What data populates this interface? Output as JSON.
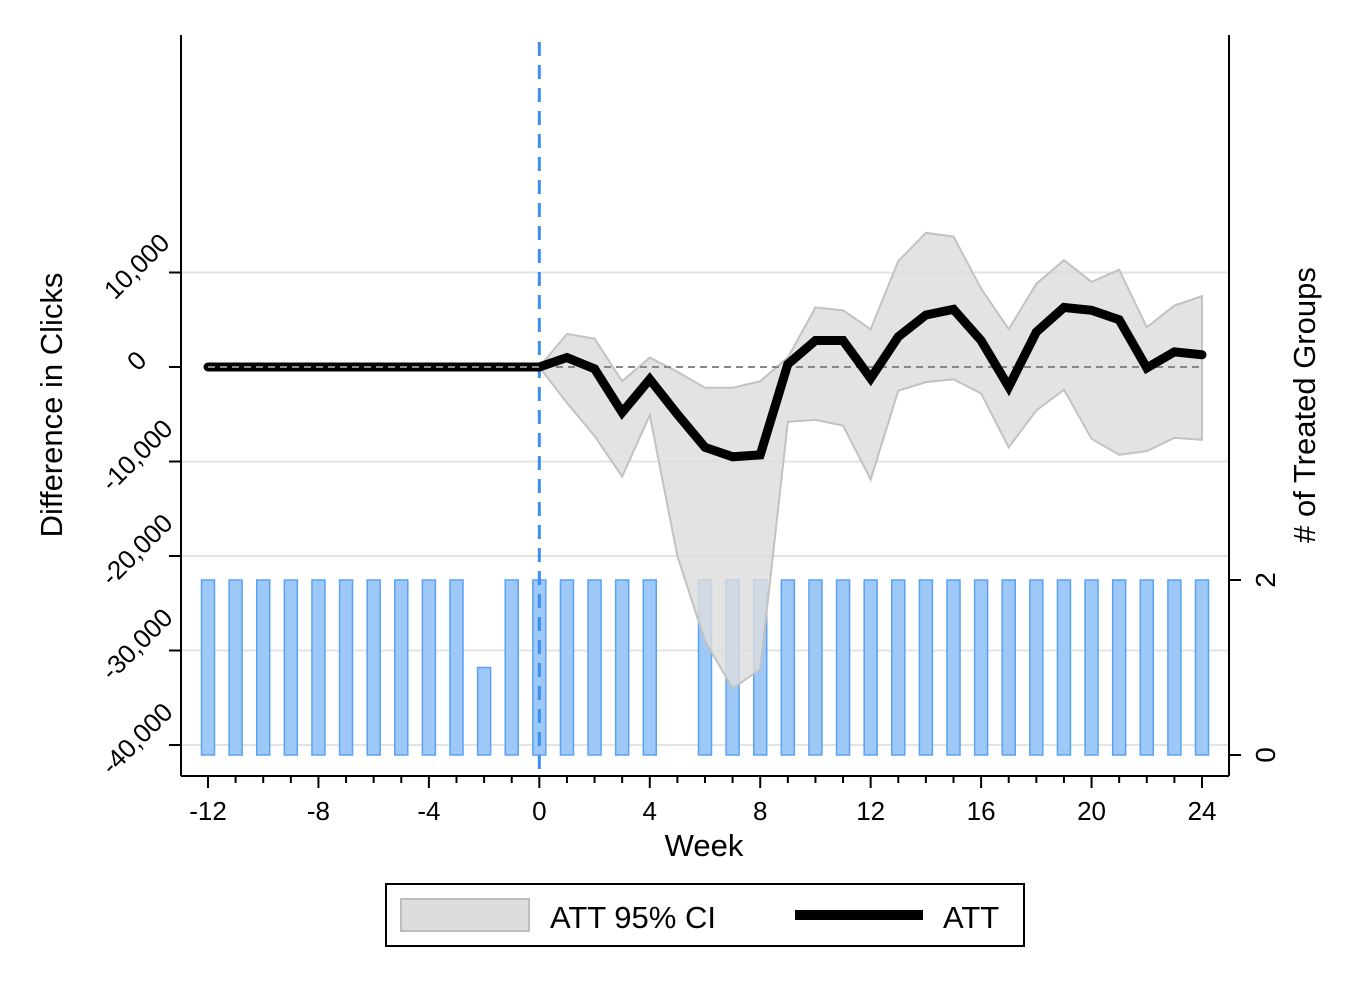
{
  "chart_data": {
    "type": "line",
    "xlabel": "Week",
    "ylabel": "Difference in Clicks",
    "y2label": "# of Treated Groups",
    "xlim": [
      -12,
      24
    ],
    "ylim": [
      -40000,
      20000
    ],
    "y2lim": [
      0,
      2
    ],
    "x_ticks": [
      -12,
      -8,
      -4,
      0,
      4,
      8,
      12,
      16,
      20,
      24
    ],
    "x_tick_labels": [
      "-12",
      "-8",
      "-4",
      "0",
      "4",
      "8",
      "12",
      "16",
      "20",
      "24"
    ],
    "y_ticks": [
      10000,
      0,
      -10000,
      -20000,
      -30000,
      -40000
    ],
    "y_tick_labels": [
      "10,000",
      "0",
      "-10,000",
      "-20,000",
      "-30,000",
      "-40,000"
    ],
    "y2_ticks": [
      2,
      0
    ],
    "y2_tick_labels": [
      "2",
      "0"
    ],
    "grid": true,
    "reference_line": {
      "x": 0,
      "style": "dashed",
      "color": "#3a8fef"
    },
    "zero_line": {
      "y": 0,
      "style": "dashed",
      "color": "#888888"
    },
    "series": [
      {
        "name": "ATT",
        "type": "line",
        "color": "#000000",
        "x": [
          -12,
          -11,
          -10,
          -9,
          -8,
          -7,
          -6,
          -5,
          -4,
          -3,
          -2,
          -1,
          0,
          1,
          2,
          3,
          4,
          5,
          6,
          7,
          8,
          9,
          10,
          11,
          12,
          13,
          14,
          15,
          16,
          17,
          18,
          19,
          20,
          21,
          22,
          23,
          24
        ],
        "y": [
          0,
          0,
          0,
          0,
          0,
          0,
          0,
          0,
          0,
          0,
          0,
          0,
          0,
          1000,
          -200,
          -4800,
          -1300,
          -5000,
          -8500,
          -9500,
          -9300,
          300,
          2800,
          2800,
          -1200,
          3200,
          5500,
          6100,
          2800,
          -2100,
          3700,
          6300,
          6000,
          5000,
          -100,
          1600,
          1300
        ]
      },
      {
        "name": "ATT 95% CI",
        "type": "area",
        "color": "#dddddd",
        "x": [
          0,
          1,
          2,
          3,
          4,
          5,
          6,
          7,
          8,
          9,
          10,
          11,
          12,
          13,
          14,
          15,
          16,
          17,
          18,
          19,
          20,
          21,
          22,
          23,
          24
        ],
        "upper": [
          0,
          3500,
          3000,
          -1500,
          1000,
          -500,
          -2200,
          -2200,
          -1500,
          1000,
          6300,
          6000,
          4000,
          11200,
          14200,
          13800,
          8300,
          4000,
          8800,
          11300,
          9000,
          10300,
          4200,
          6500,
          7500
        ],
        "lower": [
          0,
          -3800,
          -7300,
          -11600,
          -5100,
          -20000,
          -29000,
          -34000,
          -32000,
          -5800,
          -5600,
          -6200,
          -11900,
          -2500,
          -1600,
          -1300,
          -2800,
          -8500,
          -4600,
          -2400,
          -7600,
          -9300,
          -8900,
          -7500,
          -7700
        ]
      },
      {
        "name": "# of Treated Groups",
        "type": "bar",
        "axis": "y2",
        "color": "#9dc8f7",
        "x": [
          -12,
          -11,
          -10,
          -9,
          -8,
          -7,
          -6,
          -5,
          -4,
          -3,
          -2,
          -1,
          0,
          1,
          2,
          3,
          4,
          5,
          6,
          7,
          8,
          9,
          10,
          11,
          12,
          13,
          14,
          15,
          16,
          17,
          18,
          19,
          20,
          21,
          22,
          23,
          24
        ],
        "values": [
          2,
          2,
          2,
          2,
          2,
          2,
          2,
          2,
          2,
          2,
          1,
          2,
          2,
          2,
          2,
          2,
          2,
          0,
          2,
          2,
          2,
          2,
          2,
          2,
          2,
          2,
          2,
          2,
          2,
          2,
          2,
          2,
          2,
          2,
          2,
          2,
          2
        ]
      }
    ],
    "legend": {
      "placement": "bottom",
      "entries": [
        {
          "label": "ATT 95% CI",
          "symbol": "area",
          "color": "#dddddd"
        },
        {
          "label": "ATT",
          "symbol": "line",
          "color": "#000000"
        }
      ]
    }
  }
}
